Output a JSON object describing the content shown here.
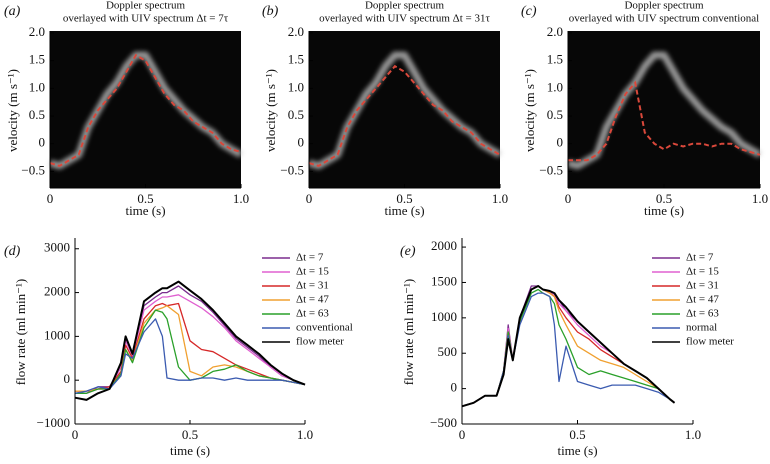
{
  "chart_data": [
    {
      "type": "spectrogram",
      "label": "(a)",
      "title": [
        "Doppler spectrum",
        "overlayed with UIV spectrum Δt = 7τ"
      ],
      "xlabel": "time (s)",
      "ylabel": "velocity (m s⁻¹)",
      "xlim": [
        0,
        1
      ],
      "xticks": [
        0,
        0.5,
        {
          "value": 1,
          "label": "1.0"
        }
      ],
      "ylim": [
        -0.8,
        2.0
      ],
      "yticks": [
        {
          "value": -0.5,
          "label": "−0.5"
        },
        0,
        0.5,
        {
          "value": 1,
          "label": "1.0"
        },
        1.5,
        {
          "value": 2,
          "label": "2.0"
        }
      ],
      "x": [
        0,
        0.05,
        0.1,
        0.15,
        0.2,
        0.25,
        0.3,
        0.35,
        0.4,
        0.45,
        0.5,
        0.55,
        0.6,
        0.65,
        0.7,
        0.75,
        0.8,
        0.85,
        0.9,
        0.95,
        1.0
      ],
      "doppler_values": [
        -0.35,
        -0.4,
        -0.3,
        -0.2,
        0.3,
        0.6,
        0.9,
        1.1,
        1.4,
        1.6,
        1.6,
        1.3,
        1.0,
        0.8,
        0.6,
        0.45,
        0.3,
        0.2,
        0.0,
        -0.1,
        -0.2
      ],
      "values": [
        -0.35,
        -0.4,
        -0.3,
        -0.2,
        0.3,
        0.6,
        0.8,
        1.0,
        1.3,
        1.6,
        1.5,
        1.2,
        0.9,
        0.7,
        0.6,
        0.4,
        0.3,
        0.2,
        0.0,
        -0.1,
        -0.15
      ],
      "color": "#d9483b",
      "doppler_color": "#c8c8c8",
      "background": "#070707"
    },
    {
      "type": "spectrogram",
      "label": "(b)",
      "title": [
        "Doppler spectrum",
        "overlayed with UIV spectrum Δt = 31τ"
      ],
      "xlabel": "time (s)",
      "ylabel": "velocity (m s⁻¹)",
      "xlim": [
        0,
        1
      ],
      "xticks": [
        0,
        0.5,
        {
          "value": 1,
          "label": "1.0"
        }
      ],
      "ylim": [
        -0.8,
        2.0
      ],
      "yticks": [
        {
          "value": -0.5,
          "label": "−0.5"
        },
        0,
        0.5,
        {
          "value": 1,
          "label": "1.0"
        },
        1.5,
        {
          "value": 2,
          "label": "2.0"
        }
      ],
      "x": [
        0,
        0.05,
        0.1,
        0.15,
        0.2,
        0.25,
        0.3,
        0.35,
        0.4,
        0.45,
        0.5,
        0.55,
        0.6,
        0.65,
        0.7,
        0.75,
        0.8,
        0.85,
        0.9,
        0.95,
        1.0
      ],
      "doppler_values": [
        -0.35,
        -0.4,
        -0.3,
        -0.2,
        0.3,
        0.6,
        0.9,
        1.1,
        1.4,
        1.6,
        1.6,
        1.3,
        1.0,
        0.8,
        0.6,
        0.45,
        0.3,
        0.2,
        0.0,
        -0.1,
        -0.2
      ],
      "values": [
        -0.35,
        -0.4,
        -0.3,
        -0.2,
        0.3,
        0.6,
        0.8,
        1.0,
        1.2,
        1.4,
        1.3,
        1.1,
        0.9,
        0.7,
        0.6,
        0.4,
        0.3,
        0.2,
        0.0,
        -0.1,
        -0.2
      ],
      "color": "#d9483b",
      "doppler_color": "#c8c8c8",
      "background": "#070707"
    },
    {
      "type": "spectrogram",
      "label": "(c)",
      "title": [
        "Doppler spectrum",
        "overlayed with UIV spectrum conventional"
      ],
      "xlabel": "time (s)",
      "ylabel": "velocity (m s⁻¹)",
      "xlim": [
        0,
        1
      ],
      "xticks": [
        0,
        0.5,
        {
          "value": 1,
          "label": "1.0"
        }
      ],
      "ylim": [
        -0.8,
        2.0
      ],
      "yticks": [
        {
          "value": -0.5,
          "label": "−0.5"
        },
        0,
        0.5,
        {
          "value": 1,
          "label": "1.0"
        },
        1.5,
        {
          "value": 2,
          "label": "2.0"
        }
      ],
      "x": [
        0,
        0.05,
        0.1,
        0.15,
        0.2,
        0.25,
        0.3,
        0.35,
        0.4,
        0.45,
        0.5,
        0.55,
        0.6,
        0.65,
        0.7,
        0.75,
        0.8,
        0.85,
        0.9,
        0.95,
        1.0
      ],
      "doppler_values": [
        -0.35,
        -0.4,
        -0.3,
        -0.2,
        0.3,
        0.6,
        0.9,
        1.1,
        1.4,
        1.6,
        1.6,
        1.3,
        1.0,
        0.8,
        0.6,
        0.45,
        0.3,
        0.2,
        0.0,
        -0.1,
        -0.2
      ],
      "values": [
        -0.3,
        -0.3,
        -0.3,
        -0.2,
        0.0,
        0.5,
        0.9,
        1.1,
        0.2,
        0.0,
        -0.1,
        0.0,
        -0.05,
        0.0,
        0.0,
        -0.05,
        0.0,
        0.0,
        -0.1,
        -0.15,
        -0.2
      ],
      "color": "#d9483b",
      "doppler_color": "#c8c8c8",
      "background": "#070707"
    },
    {
      "type": "line",
      "label": "(d)",
      "xlabel": "time (s)",
      "ylabel": "flow rate (ml min⁻¹)",
      "legend": "upper right",
      "xlim": [
        0,
        1
      ],
      "xticks": [
        0,
        0.5,
        {
          "value": 1,
          "label": "1.0"
        }
      ],
      "ylim": [
        -1000,
        3200
      ],
      "yticks": [
        {
          "value": -1000,
          "label": "−1000"
        },
        0,
        1000,
        2000,
        3000
      ],
      "x": [
        0,
        0.05,
        0.1,
        0.15,
        0.2,
        0.22,
        0.25,
        0.3,
        0.35,
        0.38,
        0.4,
        0.45,
        0.5,
        0.55,
        0.6,
        0.65,
        0.7,
        0.75,
        0.8,
        0.85,
        0.9,
        0.95,
        1.0
      ],
      "series": [
        {
          "name": "Δt = 7",
          "color": "#7b2d8e",
          "values": [
            -300,
            -300,
            -150,
            -150,
            300,
            950,
            600,
            1700,
            1900,
            2000,
            2000,
            2150,
            1950,
            1800,
            1550,
            1250,
            950,
            750,
            550,
            300,
            100,
            0,
            -100
          ]
        },
        {
          "name": "Δt = 15",
          "color": "#e060d0",
          "values": [
            -300,
            -300,
            -200,
            -200,
            300,
            900,
            550,
            1600,
            1800,
            1900,
            1900,
            1950,
            1800,
            1650,
            1450,
            1200,
            900,
            700,
            500,
            300,
            100,
            0,
            -100
          ]
        },
        {
          "name": "Δt = 31",
          "color": "#d62828",
          "values": [
            -250,
            -250,
            -200,
            -150,
            200,
            800,
            500,
            1400,
            1700,
            1750,
            1700,
            1750,
            900,
            700,
            650,
            500,
            350,
            250,
            150,
            50,
            0,
            -50,
            -100
          ]
        },
        {
          "name": "Δt = 47",
          "color": "#f0a030",
          "values": [
            -250,
            -250,
            -200,
            -200,
            150,
            700,
            450,
            1300,
            1600,
            1650,
            1700,
            1500,
            200,
            100,
            300,
            350,
            300,
            200,
            100,
            50,
            0,
            -50,
            -100
          ]
        },
        {
          "name": "Δt = 63",
          "color": "#2aa02a",
          "values": [
            -300,
            -300,
            -200,
            -200,
            150,
            700,
            400,
            1200,
            1600,
            1550,
            1400,
            300,
            0,
            50,
            200,
            250,
            350,
            200,
            100,
            50,
            0,
            -50,
            -100
          ]
        },
        {
          "name": "conventional",
          "color": "#3b5bb0",
          "values": [
            -300,
            -250,
            -150,
            -200,
            100,
            600,
            500,
            1100,
            1400,
            1000,
            50,
            0,
            0,
            50,
            50,
            0,
            50,
            0,
            0,
            0,
            0,
            -50,
            -100
          ]
        },
        {
          "name": "flow meter",
          "color": "#000000",
          "values": [
            -400,
            -450,
            -300,
            -200,
            400,
            1000,
            600,
            1800,
            2000,
            2100,
            2100,
            2250,
            2050,
            1850,
            1600,
            1300,
            1000,
            800,
            600,
            350,
            150,
            0,
            -100
          ]
        }
      ]
    },
    {
      "type": "line",
      "label": "(e)",
      "xlabel": "time (s)",
      "ylabel": "flow rate (ml min⁻¹)",
      "legend": "upper right",
      "xlim": [
        0,
        1
      ],
      "xticks": [
        0,
        0.5,
        {
          "value": 1,
          "label": "1.0"
        }
      ],
      "ylim": [
        -500,
        2100
      ],
      "yticks": [
        {
          "value": -500,
          "label": "−500"
        },
        0,
        500,
        1000,
        1500,
        2000
      ],
      "x": [
        0,
        0.05,
        0.1,
        0.15,
        0.18,
        0.2,
        0.22,
        0.25,
        0.3,
        0.33,
        0.35,
        0.38,
        0.4,
        0.42,
        0.45,
        0.5,
        0.55,
        0.6,
        0.65,
        0.7,
        0.75,
        0.8,
        0.85,
        0.9,
        0.92
      ],
      "series": [
        {
          "name": "Δt = 7",
          "color": "#7b2d8e",
          "values": [
            -250,
            -200,
            -100,
            -100,
            250,
            900,
            400,
            1000,
            1450,
            1450,
            1400,
            1350,
            1350,
            1250,
            1100,
            950,
            800,
            650,
            500,
            350,
            250,
            150,
            0,
            -150,
            -200
          ]
        },
        {
          "name": "Δt = 15",
          "color": "#e060d0",
          "values": [
            -250,
            -200,
            -100,
            -100,
            250,
            850,
            400,
            1000,
            1400,
            1450,
            1400,
            1350,
            1320,
            1200,
            1100,
            900,
            750,
            600,
            500,
            350,
            250,
            150,
            0,
            -150,
            -200
          ]
        },
        {
          "name": "Δt = 31",
          "color": "#d62828",
          "values": [
            -250,
            -200,
            -100,
            -100,
            250,
            800,
            400,
            950,
            1400,
            1450,
            1400,
            1350,
            1300,
            1150,
            1000,
            800,
            700,
            550,
            450,
            350,
            250,
            150,
            0,
            -150,
            -200
          ]
        },
        {
          "name": "Δt = 47",
          "color": "#f0a030",
          "values": [
            -250,
            -200,
            -100,
            -100,
            250,
            800,
            400,
            950,
            1400,
            1450,
            1400,
            1350,
            1300,
            1100,
            900,
            600,
            500,
            400,
            350,
            300,
            200,
            100,
            0,
            -150,
            -200
          ]
        },
        {
          "name": "Δt = 63",
          "color": "#2aa02a",
          "values": [
            -250,
            -200,
            -100,
            -100,
            250,
            800,
            400,
            950,
            1350,
            1400,
            1350,
            1300,
            1200,
            900,
            700,
            300,
            200,
            250,
            200,
            150,
            100,
            50,
            0,
            -150,
            -200
          ]
        },
        {
          "name": "normal",
          "color": "#3b5bb0",
          "values": [
            -250,
            -200,
            -100,
            -100,
            250,
            750,
            400,
            900,
            1300,
            1350,
            1350,
            1300,
            900,
            100,
            600,
            100,
            50,
            0,
            50,
            50,
            50,
            0,
            -50,
            -150,
            -200
          ]
        },
        {
          "name": "flow meter",
          "color": "#000000",
          "values": [
            -250,
            -200,
            -100,
            -100,
            200,
            700,
            400,
            1000,
            1400,
            1450,
            1400,
            1380,
            1350,
            1250,
            1150,
            950,
            800,
            650,
            500,
            350,
            250,
            150,
            0,
            -150,
            -200
          ]
        }
      ]
    }
  ]
}
